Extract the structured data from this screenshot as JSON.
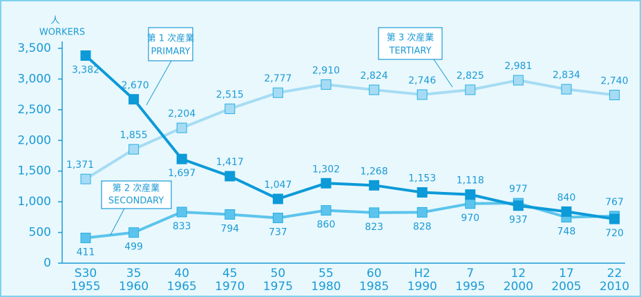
{
  "chart_data": {
    "type": "line",
    "y_label": [
      "人",
      "WORKERS"
    ],
    "categories": [
      [
        "S30",
        "1955"
      ],
      [
        "35",
        "1960"
      ],
      [
        "40",
        "1965"
      ],
      [
        "45",
        "1970"
      ],
      [
        "50",
        "1975"
      ],
      [
        "55",
        "1980"
      ],
      [
        "60",
        "1985"
      ],
      [
        "H2",
        "1990"
      ],
      [
        "7",
        "1995"
      ],
      [
        "12",
        "2000"
      ],
      [
        "17",
        "2005"
      ],
      [
        "22",
        "2010"
      ]
    ],
    "ylim": [
      0,
      3500
    ],
    "yticks": [
      0,
      500,
      {
        "value": 1000,
        "label": "1,000"
      },
      {
        "value": 1500,
        "label": "1,500"
      },
      {
        "value": 2000,
        "label": "2,000"
      },
      {
        "value": 2500,
        "label": "2,500"
      },
      {
        "value": 3000,
        "label": "3,000"
      },
      {
        "value": 3500,
        "label": "3,500"
      }
    ],
    "series": [
      {
        "name": "第 1 次産業",
        "name_en": "PRIMARY",
        "color": "#0c9ad8",
        "values": [
          3382,
          2670,
          1697,
          1417,
          1047,
          1302,
          1268,
          1153,
          1118,
          937,
          840,
          720
        ],
        "value_labels": [
          "3,382",
          "2,670",
          "1,697",
          "1,417",
          "1,047",
          "1,302",
          "1,268",
          "1,153",
          "1,118",
          "937",
          "840",
          "720"
        ]
      },
      {
        "name": "第 2 次産業",
        "name_en": "SECONDARY",
        "color": "#5cc4ec",
        "values": [
          411,
          499,
          833,
          794,
          737,
          860,
          823,
          828,
          970,
          977,
          748,
          767
        ],
        "value_labels": [
          "411",
          "499",
          "833",
          "794",
          "737",
          "860",
          "823",
          "828",
          "970",
          "977",
          "748",
          "767"
        ]
      },
      {
        "name": "第 3 次産業",
        "name_en": "TERTIARY",
        "color": "#a6dcf3",
        "values": [
          1371,
          1855,
          2204,
          2515,
          2777,
          2910,
          2824,
          2746,
          2825,
          2981,
          2834,
          2740
        ],
        "value_labels": [
          "1,371",
          "1,855",
          "2,204",
          "2,515",
          "2,777",
          "2,910",
          "2,824",
          "2,746",
          "2,825",
          "2,981",
          "2,834",
          "2,740"
        ]
      }
    ]
  }
}
